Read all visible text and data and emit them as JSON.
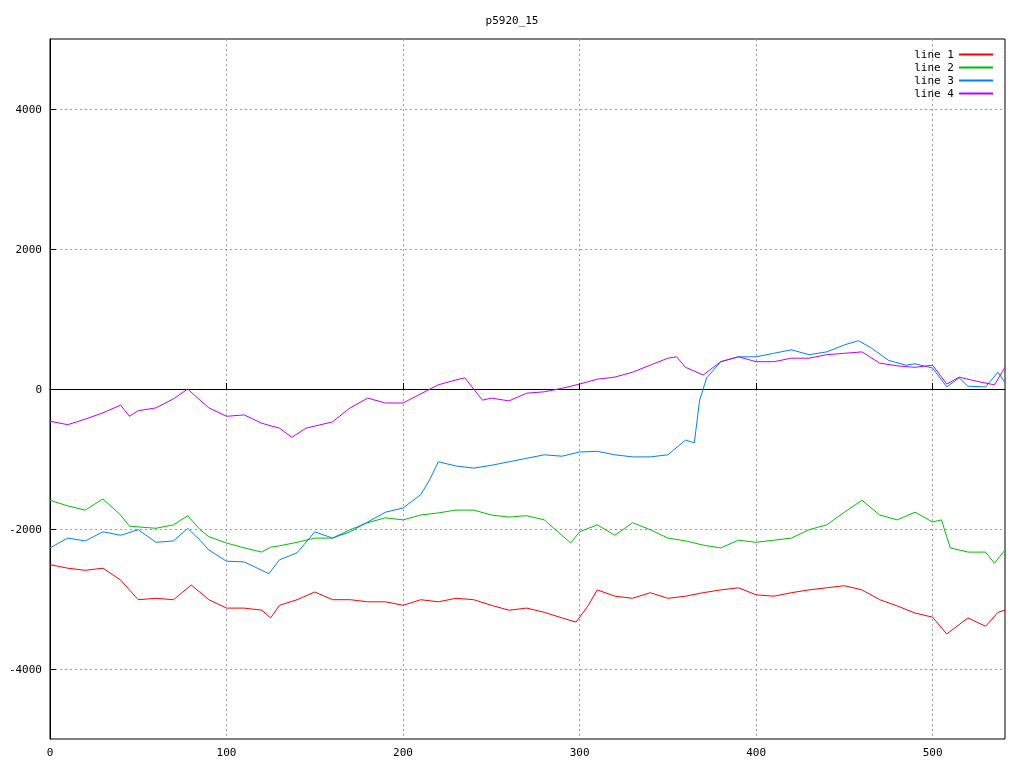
{
  "chart_data": {
    "type": "line",
    "title": "p5920_15",
    "xlim": [
      0,
      541
    ],
    "xticks": [
      0,
      100,
      200,
      300,
      400,
      500
    ],
    "ylim": [
      -5000,
      5000
    ],
    "yticks": [
      -4000,
      -2000,
      0,
      2000,
      4000
    ],
    "grid": true,
    "legend": "top right",
    "marker": "none",
    "line_style": "solid",
    "series": [
      {
        "name": "line 1",
        "color": "#ff0000",
        "x": [
          0,
          10,
          20,
          30,
          40,
          45,
          50,
          60,
          70,
          80,
          90,
          100,
          110,
          120,
          125,
          130,
          140,
          150,
          160,
          170,
          180,
          190,
          200,
          210,
          220,
          230,
          240,
          250,
          260,
          270,
          280,
          290,
          298,
          305,
          310,
          320,
          330,
          340,
          350,
          360,
          370,
          380,
          390,
          400,
          410,
          420,
          430,
          440,
          450,
          460,
          470,
          480,
          490,
          500,
          508,
          520,
          530,
          537,
          541
        ],
        "values": [
          -2510,
          -2560,
          -2590,
          -2560,
          -2730,
          -2870,
          -3010,
          -2990,
          -3010,
          -2800,
          -3010,
          -3130,
          -3130,
          -3160,
          -3270,
          -3090,
          -3010,
          -2900,
          -3010,
          -3010,
          -3040,
          -3040,
          -3090,
          -3010,
          -3040,
          -2990,
          -3010,
          -3090,
          -3160,
          -3130,
          -3190,
          -3270,
          -3330,
          -3090,
          -2870,
          -2960,
          -2990,
          -2910,
          -2990,
          -2960,
          -2910,
          -2870,
          -2840,
          -2940,
          -2960,
          -2910,
          -2870,
          -2840,
          -2810,
          -2870,
          -3010,
          -3100,
          -3200,
          -3260,
          -3500,
          -3270,
          -3390,
          -3190,
          -3160
        ]
      },
      {
        "name": "line 2",
        "color": "#00c000",
        "x": [
          0,
          10,
          20,
          30,
          40,
          45,
          50,
          60,
          70,
          78,
          85,
          90,
          100,
          110,
          120,
          125,
          130,
          140,
          150,
          160,
          170,
          180,
          190,
          200,
          210,
          220,
          230,
          240,
          250,
          260,
          270,
          280,
          290,
          295,
          300,
          310,
          320,
          330,
          340,
          350,
          360,
          370,
          380,
          390,
          400,
          410,
          420,
          430,
          440,
          450,
          460,
          470,
          480,
          490,
          500,
          505,
          510,
          520,
          530,
          535,
          541
        ],
        "values": [
          -1590,
          -1670,
          -1730,
          -1570,
          -1800,
          -1960,
          -1970,
          -1990,
          -1940,
          -1810,
          -2010,
          -2110,
          -2200,
          -2270,
          -2330,
          -2260,
          -2240,
          -2190,
          -2130,
          -2130,
          -2010,
          -1910,
          -1840,
          -1870,
          -1800,
          -1770,
          -1730,
          -1730,
          -1800,
          -1830,
          -1810,
          -1870,
          -2090,
          -2200,
          -2040,
          -1940,
          -2090,
          -1910,
          -2010,
          -2130,
          -2170,
          -2230,
          -2270,
          -2160,
          -2190,
          -2160,
          -2130,
          -2010,
          -1940,
          -1760,
          -1590,
          -1800,
          -1870,
          -1760,
          -1900,
          -1870,
          -2270,
          -2330,
          -2330,
          -2490,
          -2300
        ]
      },
      {
        "name": "line 3",
        "color": "#0080ff",
        "x": [
          0,
          10,
          20,
          30,
          40,
          50,
          60,
          70,
          78,
          85,
          90,
          100,
          110,
          120,
          124,
          130,
          140,
          150,
          160,
          170,
          180,
          190,
          200,
          210,
          215,
          220,
          230,
          240,
          250,
          260,
          270,
          280,
          290,
          300,
          310,
          320,
          330,
          340,
          350,
          360,
          365,
          368,
          372,
          380,
          390,
          400,
          410,
          420,
          430,
          440,
          450,
          458,
          465,
          475,
          485,
          490,
          500,
          508,
          515,
          520,
          530,
          537,
          541
        ],
        "values": [
          -2270,
          -2130,
          -2170,
          -2040,
          -2090,
          -2010,
          -2190,
          -2170,
          -1990,
          -2160,
          -2300,
          -2460,
          -2470,
          -2590,
          -2640,
          -2440,
          -2340,
          -2040,
          -2130,
          -2040,
          -1900,
          -1760,
          -1700,
          -1510,
          -1300,
          -1040,
          -1100,
          -1130,
          -1090,
          -1040,
          -990,
          -940,
          -960,
          -900,
          -890,
          -940,
          -970,
          -970,
          -940,
          -730,
          -770,
          -160,
          160,
          390,
          460,
          460,
          510,
          560,
          490,
          530,
          630,
          690,
          590,
          410,
          340,
          360,
          300,
          30,
          160,
          40,
          30,
          240,
          90
        ]
      },
      {
        "name": "line 4",
        "color": "#c000ff",
        "x": [
          0,
          10,
          20,
          30,
          40,
          45,
          50,
          60,
          70,
          78,
          85,
          90,
          100,
          110,
          120,
          130,
          137,
          145,
          160,
          170,
          180,
          190,
          200,
          210,
          220,
          230,
          235,
          245,
          250,
          260,
          270,
          280,
          290,
          300,
          310,
          320,
          330,
          340,
          350,
          355,
          360,
          370,
          380,
          390,
          400,
          410,
          420,
          430,
          440,
          450,
          460,
          470,
          480,
          490,
          500,
          508,
          515,
          525,
          535,
          541
        ],
        "values": [
          -460,
          -510,
          -430,
          -340,
          -230,
          -390,
          -310,
          -270,
          -140,
          0,
          -160,
          -270,
          -390,
          -370,
          -490,
          -560,
          -690,
          -560,
          -470,
          -270,
          -130,
          -200,
          -200,
          -70,
          60,
          130,
          160,
          -160,
          -130,
          -170,
          -60,
          -40,
          10,
          70,
          140,
          170,
          240,
          340,
          440,
          460,
          310,
          200,
          390,
          460,
          390,
          390,
          440,
          440,
          490,
          510,
          530,
          370,
          330,
          310,
          340,
          70,
          170,
          110,
          60,
          310
        ]
      }
    ]
  }
}
